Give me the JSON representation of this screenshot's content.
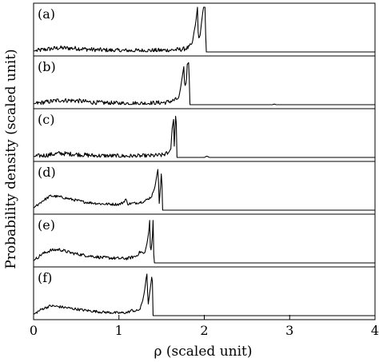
{
  "chart_data": {
    "type": "line",
    "layout": "stacked-panels",
    "xlabel": "ρ (scaled unit)",
    "ylabel": "Probability density (scaled unit)",
    "xlim": [
      0,
      4
    ],
    "xticks": [
      0,
      1,
      2,
      3,
      4
    ],
    "xtick_labels": [
      "0",
      "1",
      "2",
      "3",
      "4"
    ],
    "grid": false,
    "panels": [
      {
        "label": "(a)",
        "noise": 0.05,
        "points": [
          [
            0,
            0.02
          ],
          [
            0.15,
            0.06
          ],
          [
            0.3,
            0.09
          ],
          [
            0.5,
            0.08
          ],
          [
            0.7,
            0.05
          ],
          [
            1.0,
            0.03
          ],
          [
            1.3,
            0.03
          ],
          [
            1.6,
            0.04
          ],
          [
            1.75,
            0.06
          ],
          [
            1.82,
            0.1
          ],
          [
            1.86,
            0.2
          ],
          [
            1.88,
            0.45
          ],
          [
            1.9,
            0.65
          ],
          [
            1.92,
            1.0
          ],
          [
            1.93,
            0.3
          ],
          [
            1.95,
            0.35
          ],
          [
            1.97,
            0.7
          ],
          [
            1.99,
            1.0
          ],
          [
            2.01,
            1.0
          ],
          [
            2.02,
            0.0
          ],
          [
            4.0,
            0.0
          ]
        ]
      },
      {
        "label": "(b)",
        "noise": 0.05,
        "points": [
          [
            0,
            0.02
          ],
          [
            0.15,
            0.06
          ],
          [
            0.3,
            0.1
          ],
          [
            0.5,
            0.09
          ],
          [
            0.7,
            0.05
          ],
          [
            1.0,
            0.03
          ],
          [
            1.3,
            0.03
          ],
          [
            1.55,
            0.05
          ],
          [
            1.65,
            0.1
          ],
          [
            1.7,
            0.15
          ],
          [
            1.72,
            0.35
          ],
          [
            1.74,
            0.6
          ],
          [
            1.76,
            0.85
          ],
          [
            1.77,
            0.4
          ],
          [
            1.79,
            0.5
          ],
          [
            1.8,
            0.9
          ],
          [
            1.82,
            0.95
          ],
          [
            1.83,
            0.0
          ],
          [
            2.8,
            0.0
          ],
          [
            2.82,
            0.015
          ],
          [
            2.84,
            0.0
          ],
          [
            4.0,
            0.0
          ]
        ]
      },
      {
        "label": "(c)",
        "noise": 0.05,
        "points": [
          [
            0,
            0.02
          ],
          [
            0.15,
            0.05
          ],
          [
            0.3,
            0.09
          ],
          [
            0.5,
            0.07
          ],
          [
            0.7,
            0.04
          ],
          [
            1.0,
            0.03
          ],
          [
            1.3,
            0.03
          ],
          [
            1.5,
            0.05
          ],
          [
            1.58,
            0.1
          ],
          [
            1.61,
            0.2
          ],
          [
            1.62,
            0.6
          ],
          [
            1.64,
            0.85
          ],
          [
            1.65,
            0.1
          ],
          [
            1.66,
            0.9
          ],
          [
            1.67,
            0.95
          ],
          [
            1.68,
            0.0
          ],
          [
            2.0,
            0.0
          ],
          [
            2.03,
            0.03
          ],
          [
            2.06,
            0.0
          ],
          [
            4.0,
            0.0
          ]
        ]
      },
      {
        "label": "(d)",
        "noise": 0.03,
        "points": [
          [
            0,
            0.05
          ],
          [
            0.1,
            0.2
          ],
          [
            0.2,
            0.32
          ],
          [
            0.3,
            0.3
          ],
          [
            0.45,
            0.24
          ],
          [
            0.6,
            0.18
          ],
          [
            0.8,
            0.14
          ],
          [
            1.0,
            0.13
          ],
          [
            1.05,
            0.17
          ],
          [
            1.08,
            0.25
          ],
          [
            1.1,
            0.14
          ],
          [
            1.2,
            0.16
          ],
          [
            1.3,
            0.2
          ],
          [
            1.38,
            0.3
          ],
          [
            1.42,
            0.5
          ],
          [
            1.45,
            0.85
          ],
          [
            1.46,
            0.95
          ],
          [
            1.47,
            0.1
          ],
          [
            1.49,
            0.6
          ],
          [
            1.5,
            0.95
          ],
          [
            1.51,
            0.0
          ],
          [
            4.0,
            0.0
          ]
        ]
      },
      {
        "label": "(e)",
        "noise": 0.035,
        "points": [
          [
            0,
            0.05
          ],
          [
            0.1,
            0.2
          ],
          [
            0.2,
            0.28
          ],
          [
            0.3,
            0.3
          ],
          [
            0.45,
            0.22
          ],
          [
            0.6,
            0.17
          ],
          [
            0.8,
            0.12
          ],
          [
            1.0,
            0.1
          ],
          [
            1.1,
            0.1
          ],
          [
            1.2,
            0.15
          ],
          [
            1.25,
            0.25
          ],
          [
            1.3,
            0.2
          ],
          [
            1.33,
            0.45
          ],
          [
            1.35,
            0.7
          ],
          [
            1.36,
            0.95
          ],
          [
            1.37,
            0.2
          ],
          [
            1.39,
            0.5
          ],
          [
            1.4,
            0.95
          ],
          [
            1.41,
            0.0
          ],
          [
            4.0,
            0.0
          ]
        ]
      },
      {
        "label": "(f)",
        "noise": 0.03,
        "points": [
          [
            0,
            0.03
          ],
          [
            0.1,
            0.15
          ],
          [
            0.2,
            0.22
          ],
          [
            0.3,
            0.2
          ],
          [
            0.45,
            0.16
          ],
          [
            0.6,
            0.12
          ],
          [
            0.8,
            0.08
          ],
          [
            1.0,
            0.06
          ],
          [
            1.1,
            0.07
          ],
          [
            1.15,
            0.12
          ],
          [
            1.2,
            0.1
          ],
          [
            1.25,
            0.15
          ],
          [
            1.28,
            0.35
          ],
          [
            1.3,
            0.55
          ],
          [
            1.32,
            0.85
          ],
          [
            1.33,
            0.95
          ],
          [
            1.34,
            0.2
          ],
          [
            1.36,
            0.5
          ],
          [
            1.38,
            0.8
          ],
          [
            1.39,
            0.95
          ],
          [
            1.4,
            0.0
          ],
          [
            4.0,
            0.0
          ]
        ]
      }
    ]
  }
}
